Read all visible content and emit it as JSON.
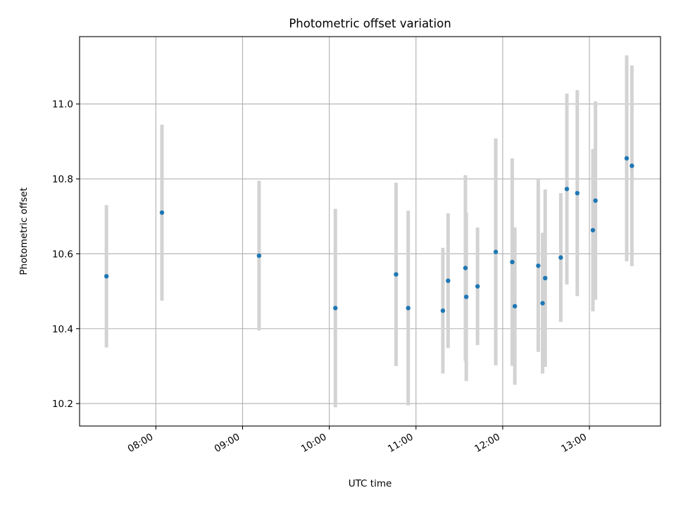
{
  "chart_data": {
    "type": "scatter",
    "title": "Photometric offset variation",
    "xlabel": "UTC time",
    "ylabel": "Photometric offset",
    "grid": true,
    "legend": "none",
    "x_unit": "hours UTC",
    "xlim": [
      7.12,
      13.82
    ],
    "ylim": [
      10.14,
      11.18
    ],
    "x_ticks": [
      {
        "value": 8,
        "label": "08:00"
      },
      {
        "value": 9,
        "label": "09:00"
      },
      {
        "value": 10,
        "label": "10:00"
      },
      {
        "value": 11,
        "label": "11:00"
      },
      {
        "value": 12,
        "label": "12:00"
      },
      {
        "value": 13,
        "label": "13:00"
      }
    ],
    "y_ticks": [
      {
        "value": 10.2,
        "label": "10.2"
      },
      {
        "value": 10.4,
        "label": "10.4"
      },
      {
        "value": 10.6,
        "label": "10.6"
      },
      {
        "value": 10.8,
        "label": "10.8"
      },
      {
        "value": 11.0,
        "label": "11.0"
      }
    ],
    "marker_color": "#1f77b4",
    "errorbar_color": "#d3d3d3",
    "points": [
      {
        "time": "07:26",
        "x": 7.43,
        "y": 10.54,
        "err": 0.19
      },
      {
        "time": "08:04",
        "x": 8.07,
        "y": 10.71,
        "err": 0.235
      },
      {
        "time": "09:11",
        "x": 9.19,
        "y": 10.595,
        "err": 0.2
      },
      {
        "time": "10:04",
        "x": 10.07,
        "y": 10.455,
        "err": 0.265
      },
      {
        "time": "10:46",
        "x": 10.77,
        "y": 10.545,
        "err": 0.245
      },
      {
        "time": "10:55",
        "x": 10.91,
        "y": 10.455,
        "err": 0.26
      },
      {
        "time": "11:19",
        "x": 11.31,
        "y": 10.448,
        "err": 0.168
      },
      {
        "time": "11:22",
        "x": 11.37,
        "y": 10.528,
        "err": 0.18
      },
      {
        "time": "11:34",
        "x": 11.57,
        "y": 10.562,
        "err": 0.248
      },
      {
        "time": "11:35",
        "x": 11.58,
        "y": 10.485,
        "err": 0.225
      },
      {
        "time": "11:42",
        "x": 11.71,
        "y": 10.513,
        "err": 0.157
      },
      {
        "time": "11:55",
        "x": 11.92,
        "y": 10.605,
        "err": 0.303
      },
      {
        "time": "12:07",
        "x": 12.11,
        "y": 10.578,
        "err": 0.277
      },
      {
        "time": "12:08",
        "x": 12.14,
        "y": 10.46,
        "err": 0.21
      },
      {
        "time": "12:25",
        "x": 12.41,
        "y": 10.568,
        "err": 0.23
      },
      {
        "time": "12:28",
        "x": 12.46,
        "y": 10.468,
        "err": 0.188
      },
      {
        "time": "12:29",
        "x": 12.49,
        "y": 10.535,
        "err": 0.237
      },
      {
        "time": "12:40",
        "x": 12.67,
        "y": 10.59,
        "err": 0.172
      },
      {
        "time": "12:45",
        "x": 12.74,
        "y": 10.773,
        "err": 0.255
      },
      {
        "time": "12:52",
        "x": 12.86,
        "y": 10.762,
        "err": 0.275
      },
      {
        "time": "13:02",
        "x": 13.04,
        "y": 10.663,
        "err": 0.217
      },
      {
        "time": "13:04",
        "x": 13.07,
        "y": 10.742,
        "err": 0.265
      },
      {
        "time": "13:26",
        "x": 13.43,
        "y": 10.855,
        "err": 0.275
      },
      {
        "time": "13:30",
        "x": 13.49,
        "y": 10.835,
        "err": 0.268
      }
    ]
  }
}
